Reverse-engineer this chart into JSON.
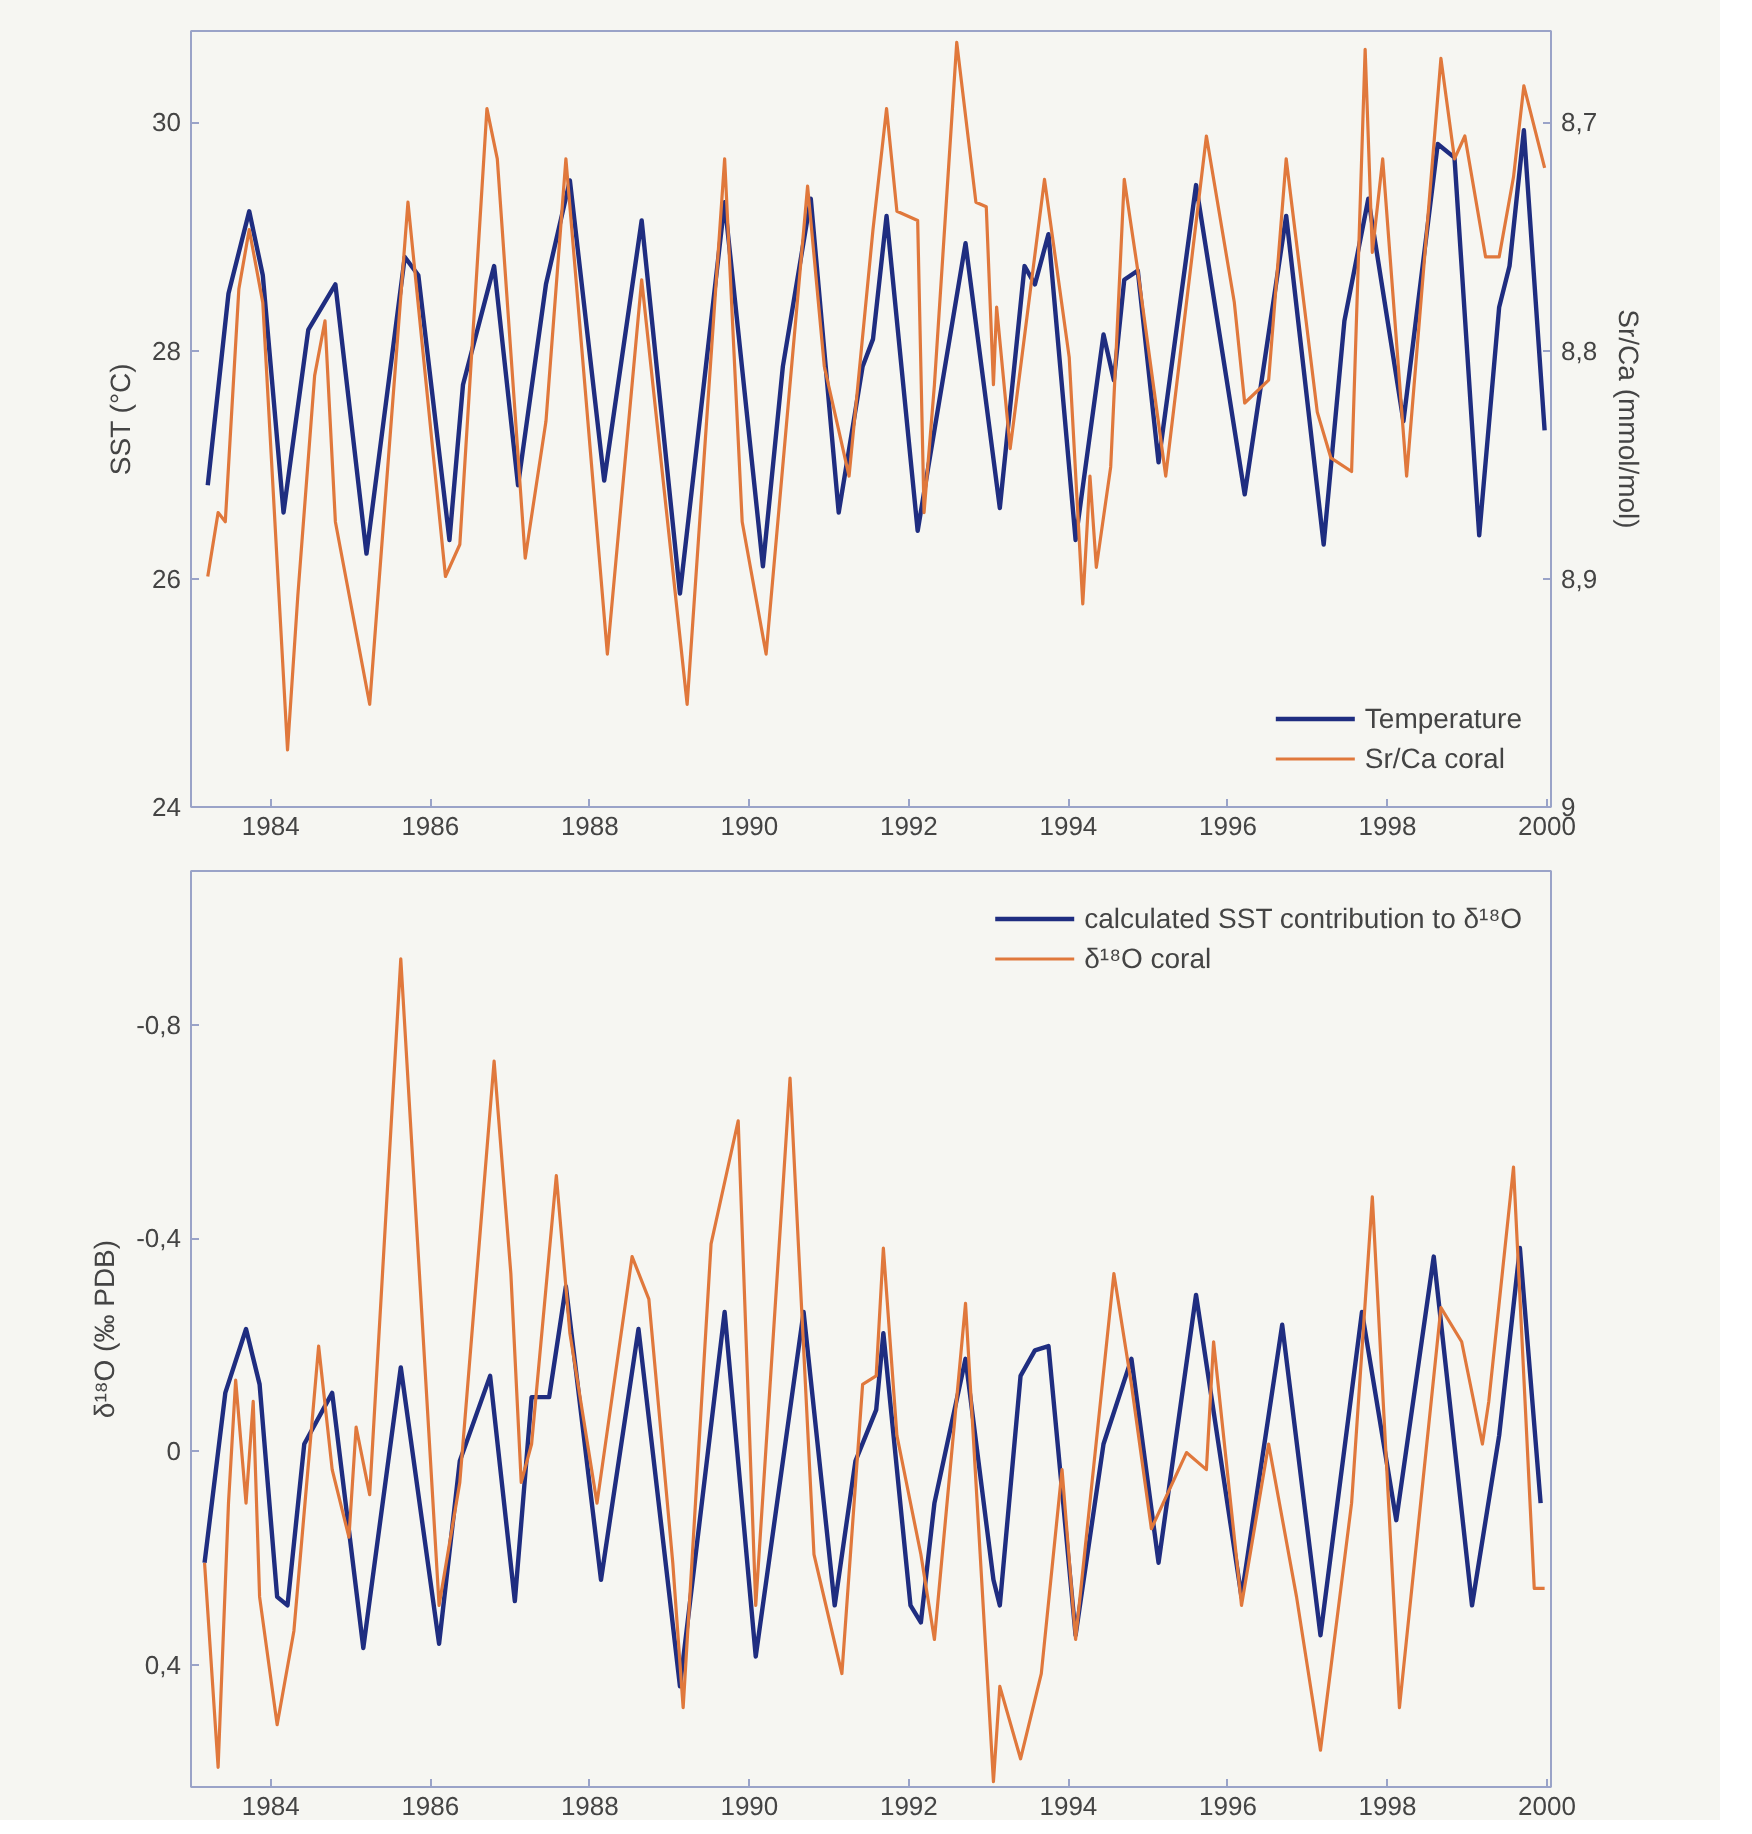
{
  "chart_data": [
    {
      "type": "line",
      "ylabel": "SST (°C)",
      "y2label": "Sr/Ca (mmol/mol)",
      "xlim": [
        1983.0,
        2000.05
      ],
      "xticks": [
        1984,
        1986,
        1988,
        1990,
        1992,
        1994,
        1996,
        1998,
        2000
      ],
      "ylim": [
        24,
        30.8
      ],
      "yticks": [
        24,
        26,
        28,
        30
      ],
      "y2lim": [
        9.0,
        8.66
      ],
      "y2ticks": [
        {
          "value": 8.7,
          "label": "8,7"
        },
        {
          "value": 8.8,
          "label": "8,8"
        },
        {
          "value": 8.9,
          "label": "8,9"
        },
        9
      ],
      "grid": false,
      "legend": "bottom right",
      "line_style": "solid",
      "series": [
        {
          "name": "Temperature",
          "color": "#1f2d80",
          "x": [
            1983.21,
            1983.47,
            1983.73,
            1983.9,
            1984.16,
            1984.47,
            1984.81,
            1985.2,
            1985.68,
            1985.85,
            1986.24,
            1986.41,
            1986.8,
            1987.1,
            1987.45,
            1987.75,
            1988.18,
            1988.65,
            1989.13,
            1989.69,
            1990.17,
            1990.42,
            1990.77,
            1991.12,
            1991.42,
            1991.55,
            1991.72,
            1992.11,
            1992.71,
            1993.14,
            1993.45,
            1993.58,
            1993.75,
            1994.09,
            1994.44,
            1994.57,
            1994.7,
            1994.87,
            1995.13,
            1995.6,
            1996.21,
            1996.73,
            1997.2,
            1997.46,
            1997.76,
            1998.2,
            1998.63,
            1998.84,
            1999.15,
            1999.4,
            1999.53,
            1999.71,
            1999.97
          ],
          "values": [
            26.82,
            28.5,
            29.22,
            28.66,
            26.58,
            28.18,
            28.58,
            26.22,
            28.82,
            28.66,
            26.34,
            27.7,
            28.74,
            26.82,
            28.58,
            29.49,
            26.86,
            29.14,
            25.87,
            29.3,
            26.11,
            27.86,
            29.33,
            26.58,
            27.86,
            28.1,
            29.18,
            26.42,
            28.94,
            26.62,
            28.74,
            28.58,
            29.02,
            26.34,
            28.14,
            27.74,
            28.62,
            28.7,
            27.02,
            29.45,
            26.74,
            29.18,
            26.3,
            28.26,
            29.33,
            27.38,
            29.81,
            29.69,
            26.38,
            28.38,
            28.74,
            29.93,
            27.3
          ]
        },
        {
          "name": "Sr/Ca coral",
          "color": "#e0783c",
          "axis": "y2",
          "x": [
            1983.21,
            1983.34,
            1983.43,
            1983.6,
            1983.73,
            1983.9,
            1984.21,
            1984.34,
            1984.55,
            1984.68,
            1984.81,
            1985.24,
            1985.72,
            1986.19,
            1986.37,
            1986.71,
            1986.84,
            1987.19,
            1987.45,
            1987.7,
            1988.22,
            1988.65,
            1989.22,
            1989.69,
            1989.91,
            1990.21,
            1990.73,
            1990.94,
            1991.25,
            1991.55,
            1991.72,
            1991.85,
            1992.11,
            1992.19,
            1992.32,
            1992.6,
            1992.84,
            1992.97,
            1993.06,
            1993.1,
            1993.27,
            1993.7,
            1994.01,
            1994.18,
            1994.27,
            1994.35,
            1994.53,
            1994.7,
            1994.87,
            1995.22,
            1995.73,
            1996.08,
            1996.21,
            1996.51,
            1996.73,
            1997.12,
            1997.29,
            1997.55,
            1997.72,
            1997.81,
            1997.94,
            1998.24,
            1998.67,
            1998.84,
            1998.97,
            1999.23,
            1999.4,
            1999.58,
            1999.71,
            1999.97
          ],
          "values": [
            8.899,
            8.871,
            8.875,
            8.773,
            8.747,
            8.779,
            8.975,
            8.907,
            8.811,
            8.787,
            8.875,
            8.955,
            8.735,
            8.899,
            8.885,
            8.694,
            8.716,
            8.891,
            8.831,
            8.716,
            8.933,
            8.769,
            8.955,
            8.716,
            8.875,
            8.933,
            8.728,
            8.807,
            8.855,
            8.747,
            8.694,
            8.739,
            8.743,
            8.871,
            8.815,
            8.665,
            8.735,
            8.737,
            8.815,
            8.781,
            8.843,
            8.725,
            8.803,
            8.911,
            8.855,
            8.895,
            8.851,
            8.725,
            8.765,
            8.855,
            8.706,
            8.779,
            8.823,
            8.813,
            8.716,
            8.827,
            8.847,
            8.853,
            8.668,
            8.757,
            8.716,
            8.855,
            8.672,
            8.716,
            8.706,
            8.759,
            8.759,
            8.724,
            8.684,
            8.72
          ]
        }
      ]
    },
    {
      "type": "line",
      "ylabel": "δ¹⁸O (‰ PDB)",
      "xlim": [
        1983.0,
        2000.05
      ],
      "xticks": [
        1984,
        1986,
        1988,
        1990,
        1992,
        1994,
        1996,
        1998,
        2000
      ],
      "ylim": [
        0.63,
        -1.09
      ],
      "yticks": [
        {
          "value": -0.8,
          "label": "-0,8"
        },
        {
          "value": -0.4,
          "label": "-0,4"
        },
        0,
        {
          "value": 0.4,
          "label": "0,4"
        }
      ],
      "grid": false,
      "legend": "top right",
      "line_style": "solid",
      "series": [
        {
          "name": "calculated SST contribution to δ¹⁸O",
          "color": "#1f2d80",
          "x": [
            1983.17,
            1983.43,
            1983.69,
            1983.86,
            1984.08,
            1984.21,
            1984.42,
            1984.77,
            1985.16,
            1985.63,
            1986.11,
            1986.37,
            1986.75,
            1987.06,
            1987.27,
            1987.49,
            1987.7,
            1988.14,
            1988.61,
            1989.13,
            1989.69,
            1990.08,
            1990.68,
            1991.07,
            1991.33,
            1991.59,
            1991.68,
            1992.02,
            1992.15,
            1992.32,
            1992.71,
            1993.06,
            1993.14,
            1993.4,
            1993.58,
            1993.75,
            1994.09,
            1994.44,
            1994.79,
            1995.13,
            1995.6,
            1996.17,
            1996.68,
            1997.16,
            1997.68,
            1998.11,
            1998.58,
            1999.06,
            1999.4,
            1999.66,
            1999.92
          ],
          "values": [
            0.209,
            -0.11,
            -0.23,
            -0.126,
            0.273,
            0.289,
            -0.014,
            -0.11,
            0.369,
            -0.158,
            0.361,
            0.018,
            -0.142,
            0.281,
            -0.102,
            -0.102,
            -0.31,
            0.241,
            -0.23,
            0.441,
            -0.262,
            0.385,
            -0.262,
            0.289,
            0.018,
            -0.078,
            -0.222,
            0.289,
            0.321,
            0.097,
            -0.174,
            0.241,
            0.289,
            -0.142,
            -0.19,
            -0.198,
            0.345,
            -0.014,
            -0.174,
            0.209,
            -0.294,
            0.273,
            -0.238,
            0.345,
            -0.262,
            0.129,
            -0.366,
            0.289,
            -0.03,
            -0.382,
            0.097
          ]
        },
        {
          "name": "δ¹⁸O coral",
          "color": "#e0783c",
          "x": [
            1983.17,
            1983.34,
            1983.47,
            1983.56,
            1983.69,
            1983.78,
            1983.86,
            1984.08,
            1984.29,
            1984.6,
            1984.77,
            1984.98,
            1985.07,
            1985.24,
            1985.63,
            1986.11,
            1986.37,
            1986.8,
            1987.01,
            1987.14,
            1987.27,
            1987.58,
            1987.75,
            1988.09,
            1988.53,
            1988.74,
            1989.04,
            1989.17,
            1989.52,
            1989.86,
            1990.08,
            1990.51,
            1990.81,
            1991.16,
            1991.42,
            1991.59,
            1991.68,
            1991.85,
            1992.15,
            1992.32,
            1992.71,
            1993.06,
            1993.14,
            1993.4,
            1993.66,
            1993.92,
            1994.09,
            1994.57,
            1994.79,
            1995.04,
            1995.48,
            1995.73,
            1995.82,
            1996.17,
            1996.51,
            1996.86,
            1997.16,
            1997.55,
            1997.81,
            1998.15,
            1998.67,
            1998.93,
            1999.19,
            1999.27,
            1999.58,
            1999.84,
            1999.97
          ],
          "values": [
            0.209,
            0.593,
            0.097,
            -0.134,
            0.097,
            -0.094,
            0.273,
            0.513,
            0.337,
            -0.198,
            0.034,
            0.161,
            -0.046,
            0.081,
            -0.925,
            0.289,
            0.058,
            -0.733,
            -0.334,
            0.058,
            -0.014,
            -0.518,
            -0.222,
            0.097,
            -0.366,
            -0.286,
            0.209,
            0.481,
            -0.39,
            -0.621,
            0.289,
            -0.701,
            0.193,
            0.417,
            -0.126,
            -0.142,
            -0.382,
            -0.03,
            0.193,
            0.353,
            -0.278,
            0.62,
            0.441,
            0.577,
            0.417,
            0.034,
            0.353,
            -0.334,
            -0.126,
            0.145,
            0.002,
            0.034,
            -0.206,
            0.289,
            -0.014,
            0.273,
            0.561,
            0.097,
            -0.478,
            0.481,
            -0.27,
            -0.206,
            -0.014,
            -0.094,
            -0.534,
            0.257,
            0.257
          ]
        }
      ]
    }
  ]
}
